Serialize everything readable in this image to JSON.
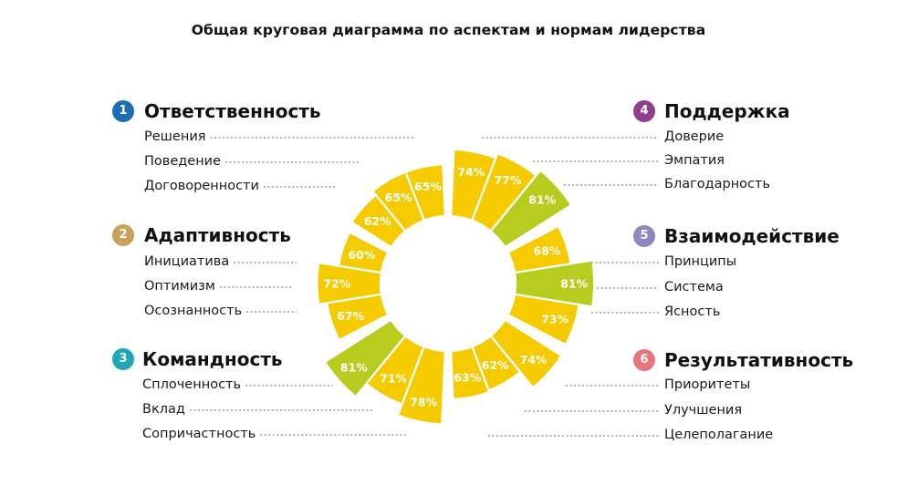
{
  "title": "Общая круговая диаграмма по аспектам и нормам лидерства",
  "colors": {
    "yellow": "#F5CB00",
    "green": "#B8CC1F",
    "dots": "#9a9a9a"
  },
  "groups": [
    {
      "number": "1",
      "name": "Ответственность",
      "color": "#1E6CB4"
    },
    {
      "number": "2",
      "name": "Адаптивность",
      "color": "#C9A15A"
    },
    {
      "number": "3",
      "name": "Командность",
      "color": "#1FA7B7"
    },
    {
      "number": "4",
      "name": "Поддержка",
      "color": "#8E3F8E"
    },
    {
      "number": "5",
      "name": "Взаимодействие",
      "color": "#8F86C4"
    },
    {
      "number": "6",
      "name": "Результативность",
      "color": "#E8747C"
    }
  ],
  "chart_data": {
    "type": "pie",
    "title": "Общая круговая диаграмма по аспектам и нормам лидерства",
    "unit": "%",
    "series": [
      {
        "group": "Ответственность",
        "label": "Решения",
        "value": 65,
        "color": "yellow"
      },
      {
        "group": "Ответственность",
        "label": "Поведение",
        "value": 65,
        "color": "yellow"
      },
      {
        "group": "Ответственность",
        "label": "Договоренности",
        "value": 62,
        "color": "yellow"
      },
      {
        "group": "Адаптивность",
        "label": "Инициатива",
        "value": 60,
        "color": "yellow"
      },
      {
        "group": "Адаптивность",
        "label": "Оптимизм",
        "value": 72,
        "color": "yellow"
      },
      {
        "group": "Адаптивность",
        "label": "Осознанность",
        "value": 67,
        "color": "yellow"
      },
      {
        "group": "Командность",
        "label": "Сплоченность",
        "value": 81,
        "color": "green"
      },
      {
        "group": "Командность",
        "label": "Вклад",
        "value": 71,
        "color": "yellow"
      },
      {
        "group": "Командность",
        "label": "Сопричастность",
        "value": 78,
        "color": "yellow"
      },
      {
        "group": "Поддержка",
        "label": "Доверие",
        "value": 74,
        "color": "yellow"
      },
      {
        "group": "Поддержка",
        "label": "Эмпатия",
        "value": 77,
        "color": "yellow"
      },
      {
        "group": "Поддержка",
        "label": "Благодарность",
        "value": 81,
        "color": "green"
      },
      {
        "group": "Взаимодействие",
        "label": "Принципы",
        "value": 68,
        "color": "yellow"
      },
      {
        "group": "Взаимодействие",
        "label": "Система",
        "value": 81,
        "color": "green"
      },
      {
        "group": "Взаимодействие",
        "label": "Ясность",
        "value": 73,
        "color": "yellow"
      },
      {
        "group": "Результативность",
        "label": "Приоритеты",
        "value": 74,
        "color": "yellow"
      },
      {
        "group": "Результативность",
        "label": "Улучшения",
        "value": 62,
        "color": "yellow"
      },
      {
        "group": "Результативность",
        "label": "Целеполагание",
        "value": 63,
        "color": "yellow"
      }
    ]
  }
}
